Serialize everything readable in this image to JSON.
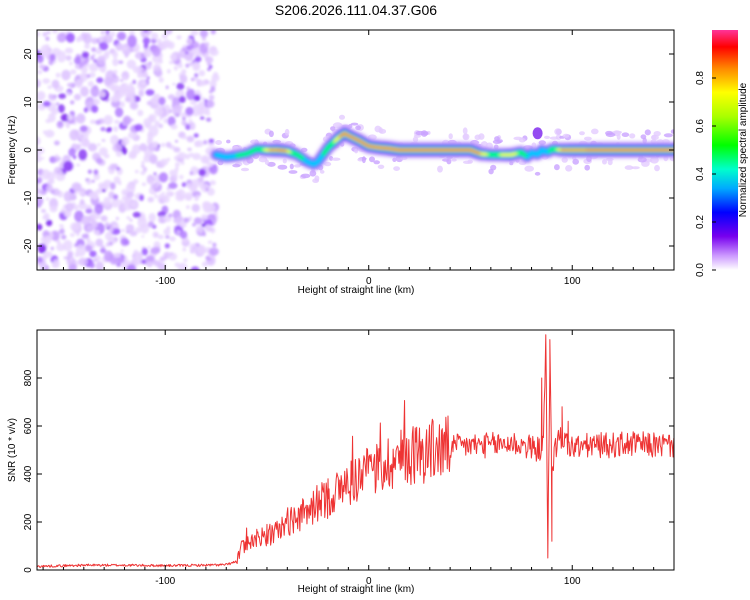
{
  "title": "S206.2026.111.04.37.G06",
  "chart_data": [
    {
      "type": "heatmap",
      "xlabel": "Height of straight line (km)",
      "ylabel": "Frequency (Hz)",
      "xlim": [
        -163,
        150
      ],
      "ylim": [
        -25,
        25
      ],
      "x_ticks": [
        -100,
        0,
        100
      ],
      "y_ticks": [
        -20,
        -10,
        0,
        10,
        20
      ],
      "noise_region_x": [
        -163,
        -75
      ],
      "ridge": {
        "x": [
          -75,
          -70,
          -65,
          -60,
          -55,
          -50,
          -45,
          -40,
          -35,
          -30,
          -27,
          -25,
          -20,
          -15,
          -12,
          -10,
          -5,
          0,
          5,
          10,
          15,
          20,
          30,
          40,
          50,
          55,
          60,
          65,
          70,
          75,
          78,
          80,
          83,
          85,
          88,
          90,
          95,
          100,
          110,
          120,
          130,
          140,
          150
        ],
        "y": [
          -1,
          -1.5,
          -1.2,
          -0.8,
          0.2,
          0,
          0,
          -0.2,
          -1,
          -2.5,
          -3,
          -2.5,
          0.5,
          2.5,
          3.5,
          3,
          2,
          0.8,
          0.5,
          0.3,
          0,
          0,
          0,
          0,
          0,
          -0.8,
          -1,
          -1,
          -1,
          -0.5,
          -1.5,
          -0.5,
          -1,
          0,
          -0.5,
          0.2,
          0,
          0,
          0,
          0,
          0,
          0,
          0
        ],
        "strength": [
          0.5,
          0.5,
          0.55,
          0.55,
          0.6,
          0.8,
          0.9,
          0.8,
          0.6,
          0.5,
          0.45,
          0.5,
          0.6,
          0.8,
          0.9,
          0.85,
          0.85,
          0.85,
          0.9,
          0.95,
          0.95,
          0.95,
          0.95,
          0.95,
          0.95,
          0.8,
          0.7,
          0.75,
          0.8,
          0.7,
          0.5,
          0.45,
          0.5,
          0.55,
          0.5,
          0.6,
          0.85,
          0.9,
          0.95,
          0.95,
          0.95,
          0.95,
          0.95
        ]
      },
      "colorbar": {
        "label": "Normalized spectral amplitude",
        "ticks": [
          "0.0",
          "0.2",
          "0.4",
          "0.6",
          "0.8"
        ],
        "tick_values": [
          0,
          0.2,
          0.4,
          0.6,
          0.8
        ],
        "range": [
          0,
          1
        ]
      }
    },
    {
      "type": "line",
      "xlabel": "Height of straight line (km)",
      "ylabel": "SNR (10 * v/v)",
      "xlim": [
        -163,
        150
      ],
      "ylim": [
        0,
        1000
      ],
      "x_ticks": [
        -100,
        0,
        100
      ],
      "y_ticks": [
        0,
        200,
        400,
        600,
        800
      ],
      "color": "#ee3333",
      "series": [
        {
          "name": "SNR",
          "x": [
            -163,
            -140,
            -120,
            -100,
            -80,
            -70,
            -65,
            -62,
            -60,
            -55,
            -50,
            -45,
            -40,
            -35,
            -30,
            -25,
            -20,
            -15,
            -10,
            -5,
            0,
            10,
            20,
            30,
            40,
            50,
            60,
            70,
            75,
            80,
            84,
            86,
            87,
            88,
            89,
            90,
            92,
            95,
            98,
            100,
            110,
            120,
            130,
            140,
            150
          ],
          "y": [
            15,
            20,
            20,
            18,
            20,
            22,
            35,
            100,
            120,
            130,
            140,
            160,
            200,
            220,
            240,
            280,
            300,
            330,
            360,
            390,
            400,
            450,
            480,
            500,
            510,
            520,
            520,
            530,
            520,
            510,
            500,
            560,
            950,
            60,
            900,
            420,
            520,
            560,
            520,
            510,
            520,
            520,
            525,
            520,
            520
          ],
          "spikes": [
            {
              "x": -60,
              "y": 175
            },
            {
              "x": -55,
              "y": 170
            },
            {
              "x": -50,
              "y": 190
            },
            {
              "x": -20,
              "y": 380
            },
            {
              "x": 85,
              "y": 800
            },
            {
              "x": 87,
              "y": 980
            },
            {
              "x": 88,
              "y": 50
            },
            {
              "x": 89,
              "y": 960
            },
            {
              "x": 90,
              "y": 120
            },
            {
              "x": 95,
              "y": 680
            },
            {
              "x": 98,
              "y": 620
            }
          ]
        }
      ]
    }
  ]
}
